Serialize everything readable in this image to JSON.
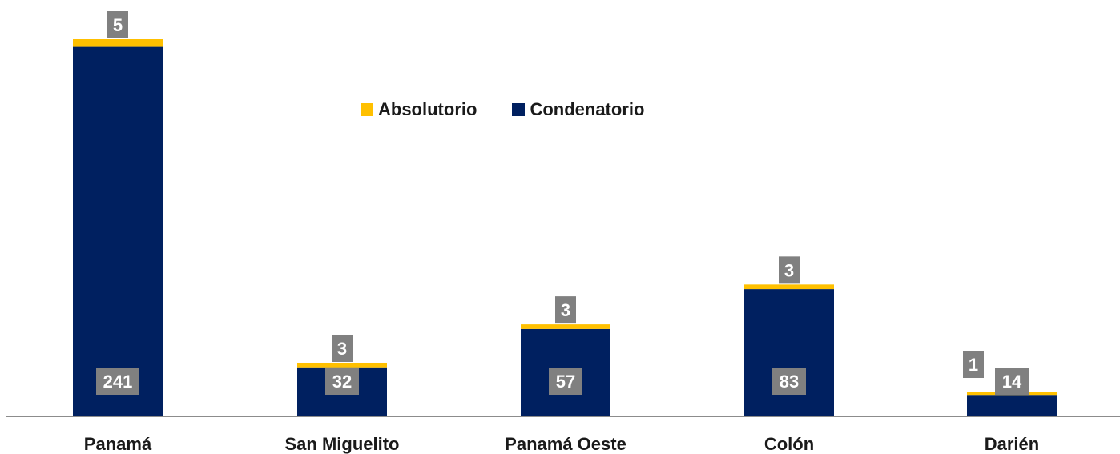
{
  "chart_data": {
    "type": "bar",
    "stacked": true,
    "categories": [
      "Panamá",
      "San Miguelito",
      "Panamá Oeste",
      "Colón",
      "Darién"
    ],
    "series": [
      {
        "name": "Condenatorio",
        "values": [
          241,
          32,
          57,
          83,
          14
        ],
        "color": "#002060"
      },
      {
        "name": "Absolutorio",
        "values": [
          5,
          3,
          3,
          3,
          1
        ],
        "color": "#FFC000"
      }
    ],
    "title": "",
    "xlabel": "",
    "ylabel": "",
    "ylim": [
      0,
      246
    ],
    "grid": false,
    "legend_position": "top-center",
    "label_box_color": "#808080"
  },
  "legend": {
    "items": [
      {
        "label": "Absolutorio",
        "color": "#FFC000"
      },
      {
        "label": "Condenatorio",
        "color": "#002060"
      }
    ]
  }
}
